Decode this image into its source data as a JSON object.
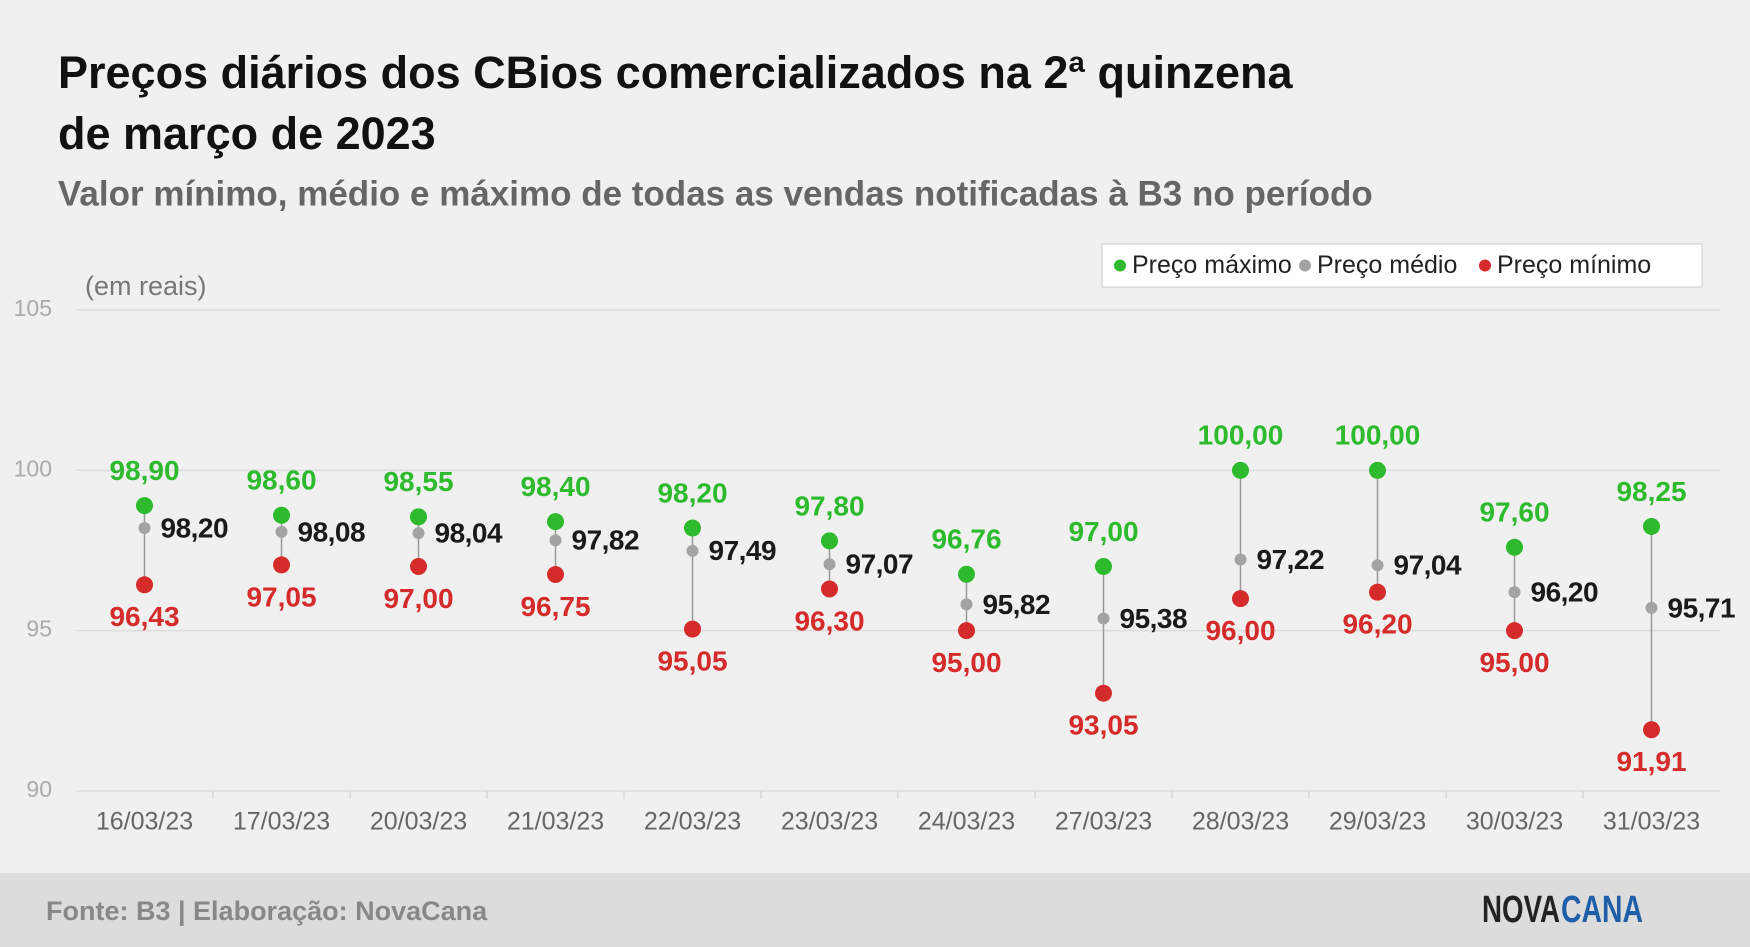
{
  "chart_data": {
    "type": "dot-range",
    "title_lines": [
      "Preços diários dos CBios comercializados na 2ª quinzena",
      "de março de 2023"
    ],
    "subtitle": "Valor mínimo, médio e máximo de todas as vendas notificadas à B3 no período",
    "y_label": "(em reais)",
    "categories": [
      "16/03/23",
      "17/03/23",
      "20/03/23",
      "21/03/23",
      "22/03/23",
      "23/03/23",
      "24/03/23",
      "27/03/23",
      "28/03/23",
      "29/03/23",
      "30/03/23",
      "31/03/23"
    ],
    "series": [
      {
        "name": "Preço máximo",
        "color": "#2dbb2d",
        "label_position": "above",
        "values": [
          98.9,
          98.6,
          98.55,
          98.4,
          98.2,
          97.8,
          96.76,
          97.0,
          100.0,
          100.0,
          97.6,
          98.25
        ],
        "value_labels": [
          "98,90",
          "98,60",
          "98,55",
          "98,40",
          "98,20",
          "97,80",
          "96,76",
          "97,00",
          "100,00",
          "100,00",
          "97,60",
          "98,25"
        ]
      },
      {
        "name": "Preço médio",
        "color": "#a3a3a3",
        "label_color": "#1a1a1a",
        "label_position": "right",
        "values": [
          98.2,
          98.08,
          98.04,
          97.82,
          97.49,
          97.07,
          95.82,
          95.38,
          97.22,
          97.04,
          96.2,
          95.71
        ],
        "value_labels": [
          "98,20",
          "98,08",
          "98,04",
          "97,82",
          "97,49",
          "97,07",
          "95,82",
          "95,38",
          "97,22",
          "97,04",
          "96,20",
          "95,71"
        ]
      },
      {
        "name": "Preço mínimo",
        "color": "#d62b2b",
        "label_position": "below",
        "values": [
          96.43,
          97.05,
          97.0,
          96.75,
          95.05,
          96.3,
          95.0,
          93.05,
          96.0,
          96.2,
          95.0,
          91.91
        ],
        "value_labels": [
          "96,43",
          "97,05",
          "97,00",
          "96,75",
          "95,05",
          "96,30",
          "95,00",
          "93,05",
          "96,00",
          "96,20",
          "95,00",
          "91,91"
        ]
      }
    ],
    "ylim": [
      90,
      105
    ],
    "yticks": [
      90,
      95,
      100,
      105
    ],
    "grid": true,
    "legend": "top-right",
    "source": "Fonte: B3 | Elaboração: NovaCana",
    "logo_parts": [
      "NOVA",
      "CANA"
    ]
  }
}
